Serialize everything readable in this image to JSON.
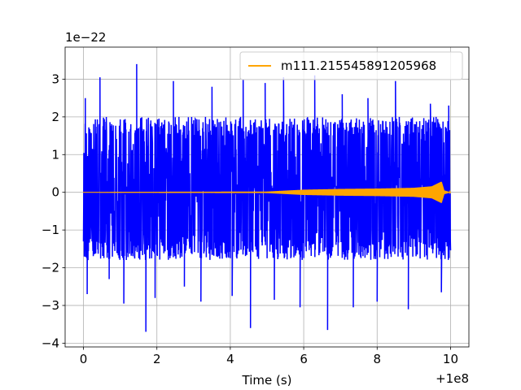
{
  "chart_data": {
    "type": "line",
    "title": "",
    "xlabel": "Time (s)",
    "ylabel": "",
    "x_offset_label": "+1e8",
    "y_scale_label": "1e−22",
    "xlim": [
      -0.5,
      10.5
    ],
    "ylim": [
      -4.1,
      3.85
    ],
    "x_ticks": [
      0,
      2,
      4,
      6,
      8,
      10
    ],
    "x_tick_labels": [
      "0",
      "2",
      "4",
      "6",
      "8",
      "10"
    ],
    "y_ticks": [
      -4,
      -3,
      -2,
      -1,
      0,
      1,
      2,
      3
    ],
    "y_tick_labels": [
      "−4",
      "−3",
      "−2",
      "−1",
      "0",
      "1",
      "2",
      "3"
    ],
    "grid": true,
    "legend_position": "top-right",
    "series": [
      {
        "name": "",
        "color": "#0000ff",
        "description": "noisy strain data",
        "x_range": [
          0,
          10
        ],
        "typical_envelope": [
          -1.8,
          2.0
        ],
        "peaks": [
          {
            "x": 0.05,
            "y": 2.5
          },
          {
            "x": 0.1,
            "y": -2.7
          },
          {
            "x": 0.45,
            "y": 3.05
          },
          {
            "x": 0.7,
            "y": -2.3
          },
          {
            "x": 1.1,
            "y": -2.95
          },
          {
            "x": 1.45,
            "y": 3.4
          },
          {
            "x": 1.7,
            "y": -3.7
          },
          {
            "x": 1.95,
            "y": -2.8
          },
          {
            "x": 2.45,
            "y": 2.95
          },
          {
            "x": 2.6,
            "y": 2.0
          },
          {
            "x": 2.75,
            "y": -2.5
          },
          {
            "x": 3.2,
            "y": -2.9
          },
          {
            "x": 3.5,
            "y": 2.8
          },
          {
            "x": 4.05,
            "y": -2.75
          },
          {
            "x": 4.35,
            "y": 3.0
          },
          {
            "x": 4.55,
            "y": -3.6
          },
          {
            "x": 4.95,
            "y": 2.9
          },
          {
            "x": 5.2,
            "y": -2.85
          },
          {
            "x": 5.45,
            "y": 3.05
          },
          {
            "x": 5.9,
            "y": -3.05
          },
          {
            "x": 6.3,
            "y": 3.1
          },
          {
            "x": 6.65,
            "y": -3.65
          },
          {
            "x": 7.05,
            "y": 2.6
          },
          {
            "x": 7.35,
            "y": -3.05
          },
          {
            "x": 7.75,
            "y": 2.5
          },
          {
            "x": 8.0,
            "y": -2.9
          },
          {
            "x": 8.5,
            "y": 2.95
          },
          {
            "x": 8.85,
            "y": -3.1
          },
          {
            "x": 9.45,
            "y": 2.35
          },
          {
            "x": 9.75,
            "y": -2.65
          },
          {
            "x": 9.95,
            "y": 2.3
          }
        ]
      },
      {
        "name": "m111.215545891205968",
        "color": "#ffa500",
        "description": "injected chirp waveform",
        "x_range": [
          0,
          10
        ],
        "amplitude_envelope": [
          {
            "x": 0,
            "y": 0.01
          },
          {
            "x": 5.0,
            "y": 0.02
          },
          {
            "x": 6.0,
            "y": 0.07
          },
          {
            "x": 7.0,
            "y": 0.09
          },
          {
            "x": 8.0,
            "y": 0.1
          },
          {
            "x": 9.0,
            "y": 0.12
          },
          {
            "x": 9.5,
            "y": 0.16
          },
          {
            "x": 9.75,
            "y": 0.28
          },
          {
            "x": 9.82,
            "y": 0.05
          },
          {
            "x": 10.0,
            "y": 0.0
          }
        ]
      }
    ]
  }
}
